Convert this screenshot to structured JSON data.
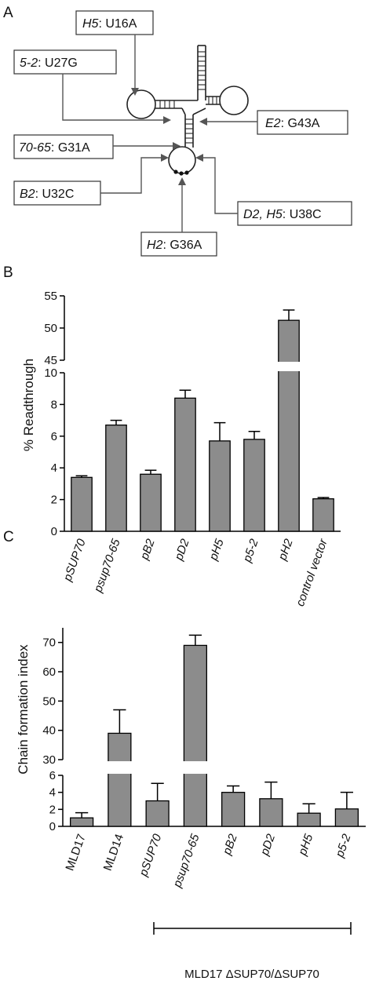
{
  "panels": {
    "a": "A",
    "b": "B",
    "c": "C"
  },
  "mutations": [
    {
      "id": "h5",
      "strain": "H5",
      "change": "U16A"
    },
    {
      "id": "m52",
      "strain": "5-2",
      "change": "U27G"
    },
    {
      "id": "e2",
      "strain": "E2",
      "change": "G43A"
    },
    {
      "id": "m7065",
      "strain": "70-65",
      "change": "G31A"
    },
    {
      "id": "b2",
      "strain": "B2",
      "change": "U32C"
    },
    {
      "id": "d2h5",
      "strain": "D2, H5",
      "change": "U38C"
    },
    {
      "id": "h2",
      "strain": "H2",
      "change": "G36A"
    }
  ],
  "bracket_label": "MLD17 ΔSUP70/ΔSUP70",
  "chart_data": [
    {
      "type": "bar",
      "panel": "B",
      "ylabel": "% Readthrough",
      "categories": [
        "pSUP70",
        "psup70-65",
        "pB2",
        "pD2",
        "pH5",
        "p5-2",
        "pH2",
        "control vector"
      ],
      "values": [
        3.4,
        6.7,
        3.6,
        8.4,
        5.7,
        5.8,
        51.2,
        2.05
      ],
      "errors": [
        0.1,
        0.3,
        0.25,
        0.5,
        1.15,
        0.5,
        1.6,
        0.08
      ],
      "y_lower_segment": {
        "range": [
          0,
          10
        ],
        "ticks": [
          "0",
          "2",
          "4",
          "6",
          "8",
          "10"
        ]
      },
      "y_upper_segment": {
        "range": [
          45,
          55
        ],
        "ticks": [
          "45",
          "50",
          "55"
        ]
      },
      "axis_break": true
    },
    {
      "type": "bar",
      "panel": "C",
      "ylabel": "Chain formation index",
      "categories": [
        "MLD17",
        "MLD14",
        "pSUP70",
        "psup70-65",
        "pB2",
        "pD2",
        "pH5",
        "p5-2"
      ],
      "values": [
        1.0,
        39,
        3.0,
        69,
        4.0,
        3.25,
        1.55,
        2.05
      ],
      "errors": [
        0.6,
        8,
        2.05,
        3.5,
        0.75,
        1.95,
        1.1,
        1.95
      ],
      "y_lower_segment": {
        "range": [
          0,
          6
        ],
        "ticks": [
          "0",
          "2",
          "4",
          "6"
        ]
      },
      "y_upper_segment": {
        "range": [
          30,
          75
        ],
        "ticks": [
          "30",
          "40",
          "50",
          "60",
          "70"
        ]
      },
      "axis_break": true
    }
  ]
}
